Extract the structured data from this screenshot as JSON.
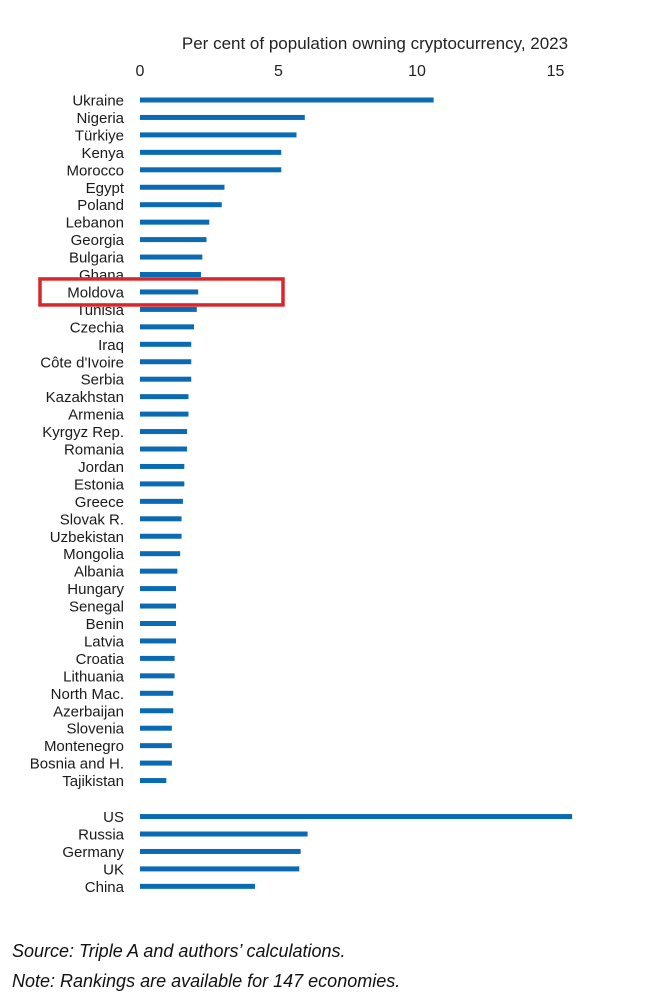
{
  "chart_data": {
    "type": "bar",
    "orientation": "horizontal",
    "title": "Per cent of population owning cryptocurrency, 2023",
    "xlabel": "",
    "ylabel": "",
    "xlim": [
      0,
      15.6
    ],
    "xticks": [
      "0",
      "5",
      "10",
      "15"
    ],
    "xtick_values": [
      0,
      5,
      10,
      15
    ],
    "grid": false,
    "legend": "none",
    "bar_color": "#0a6ab4",
    "highlight": {
      "category": "Moldova",
      "color": "#d9262b"
    },
    "groups": [
      {
        "categories": [
          "Ukraine",
          "Nigeria",
          "Türkiye",
          "Kenya",
          "Morocco",
          "Egypt",
          "Poland",
          "Lebanon",
          "Georgia",
          "Bulgaria",
          "Ghana",
          "Moldova",
          "Tunisia",
          "Czechia",
          "Iraq",
          "Côte d'Ivoire",
          "Serbia",
          "Kazakhstan",
          "Armenia",
          "Kyrgyz Rep.",
          "Romania",
          "Jordan",
          "Estonia",
          "Greece",
          "Slovak R.",
          "Uzbekistan",
          "Mongolia",
          "Albania",
          "Hungary",
          "Senegal",
          "Benin",
          "Latvia",
          "Croatia",
          "Lithuania",
          "North Mac.",
          "Azerbaijan",
          "Slovenia",
          "Montenegro",
          "Bosnia and H.",
          "Tajikistan"
        ],
        "values": [
          10.6,
          5.95,
          5.65,
          5.1,
          5.1,
          3.05,
          2.95,
          2.5,
          2.4,
          2.25,
          2.2,
          2.1,
          2.05,
          1.95,
          1.85,
          1.85,
          1.85,
          1.75,
          1.75,
          1.7,
          1.7,
          1.6,
          1.6,
          1.55,
          1.5,
          1.5,
          1.45,
          1.35,
          1.3,
          1.3,
          1.3,
          1.3,
          1.25,
          1.25,
          1.2,
          1.2,
          1.15,
          1.15,
          1.15,
          0.95
        ]
      },
      {
        "categories": [
          "US",
          "Russia",
          "Germany",
          "UK",
          "China"
        ],
        "values": [
          15.6,
          6.05,
          5.8,
          5.75,
          4.15
        ]
      }
    ]
  },
  "notes": {
    "source": "Source: Triple A and authors’ calculations.",
    "note": "Note: Rankings are available for 147 economies."
  }
}
